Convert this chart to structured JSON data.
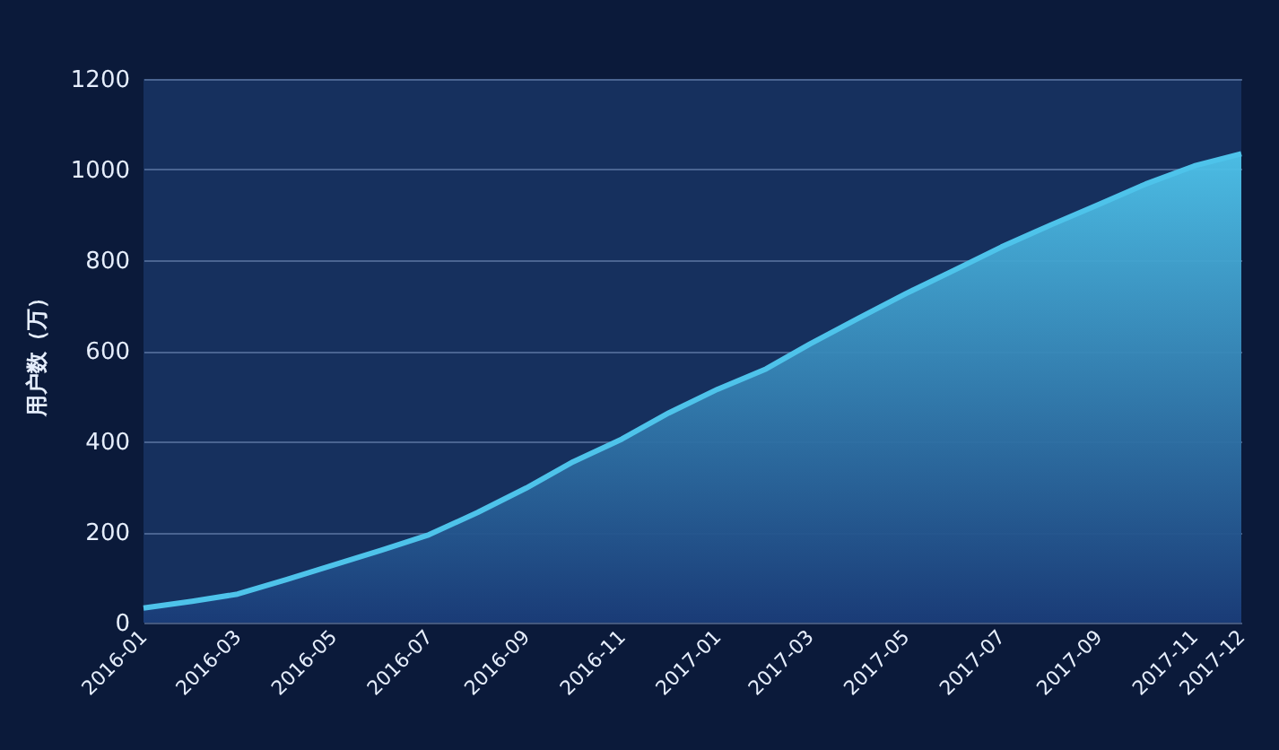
{
  "chart_data": {
    "type": "area",
    "ylabel": "用户数（万）",
    "x": [
      "2016-01",
      "2016-02",
      "2016-03",
      "2016-04",
      "2016-05",
      "2016-06",
      "2016-07",
      "2016-08",
      "2016-09",
      "2016-10",
      "2016-11",
      "2016-12",
      "2017-01",
      "2017-02",
      "2017-03",
      "2017-04",
      "2017-05",
      "2017-06",
      "2017-07",
      "2017-08",
      "2017-09",
      "2017-10",
      "2017-11",
      "2017-12"
    ],
    "series": [
      {
        "color": "#4ec3ea",
        "values": [
          32,
          47,
          63,
          95,
          127,
          160,
          194,
          243,
          297,
          355,
          405,
          463,
          515,
          560,
          615,
          672,
          726,
          778,
          829,
          877,
          923,
          968,
          1008,
          1035
        ]
      }
    ],
    "xlim": [
      "2016-01",
      "2017-12"
    ],
    "xticks": [
      "2016-01",
      "2016-03",
      "2016-05",
      "2016-07",
      "2016-09",
      "2016-11",
      "2017-01",
      "2017-03",
      "2017-05",
      "2017-07",
      "2017-09",
      "2017-11",
      "2017-12"
    ],
    "ylim": [
      0,
      1200
    ],
    "yticks": [
      0,
      200,
      400,
      600,
      800,
      1000,
      1200
    ],
    "grid": "y"
  }
}
